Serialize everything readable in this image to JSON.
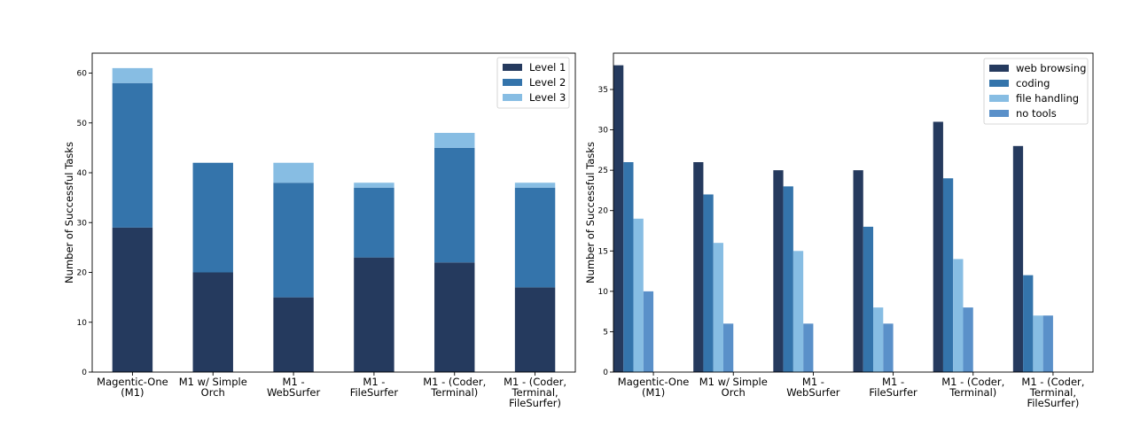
{
  "chart_data": [
    {
      "type": "bar",
      "stacked": true,
      "categories": [
        [
          "Magentic-One",
          "(M1)"
        ],
        [
          "M1 w/ Simple",
          "Orch"
        ],
        [
          "M1 -",
          "WebSurfer"
        ],
        [
          "M1 -",
          "FileSurfer"
        ],
        [
          "M1 - (Coder,",
          "Terminal)"
        ],
        [
          "M1 - (Coder,",
          "Terminal,",
          "FileSurfer)"
        ]
      ],
      "series": [
        {
          "name": "Level 1",
          "color": "#253A5E",
          "values": [
            29,
            20,
            15,
            23,
            22,
            17
          ]
        },
        {
          "name": "Level 2",
          "color": "#3474AB",
          "values": [
            29,
            22,
            23,
            14,
            23,
            20
          ]
        },
        {
          "name": "Level 3",
          "color": "#87BDE3",
          "values": [
            3,
            0,
            4,
            1,
            3,
            1
          ]
        }
      ],
      "ylabel": "Number of Successful Tasks",
      "ylim": [
        0,
        64
      ],
      "yticks": [
        0,
        10,
        20,
        30,
        40,
        50,
        60
      ],
      "legend": "top-right"
    },
    {
      "type": "bar",
      "stacked": false,
      "categories": [
        [
          "Magentic-One",
          "(M1)"
        ],
        [
          "M1 w/ Simple",
          "Orch"
        ],
        [
          "M1 -",
          "WebSurfer"
        ],
        [
          "M1 -",
          "FileSurfer"
        ],
        [
          "M1 - (Coder,",
          "Terminal)"
        ],
        [
          "M1 - (Coder,",
          "Terminal,",
          "FileSurfer)"
        ]
      ],
      "series": [
        {
          "name": "web browsing",
          "color": "#253A5E",
          "values": [
            38,
            26,
            25,
            25,
            31,
            28
          ]
        },
        {
          "name": "coding",
          "color": "#3474AB",
          "values": [
            26,
            22,
            23,
            18,
            24,
            12
          ]
        },
        {
          "name": "file handling",
          "color": "#87BDE3",
          "values": [
            19,
            16,
            15,
            8,
            14,
            7
          ]
        },
        {
          "name": "no tools",
          "color": "#5A90C9",
          "values": [
            10,
            6,
            6,
            6,
            8,
            7
          ]
        }
      ],
      "ylabel": "Number of Successful Tasks",
      "ylim": [
        0,
        39.5
      ],
      "yticks": [
        0,
        5,
        10,
        15,
        20,
        25,
        30,
        35
      ],
      "legend": "top-right"
    }
  ]
}
